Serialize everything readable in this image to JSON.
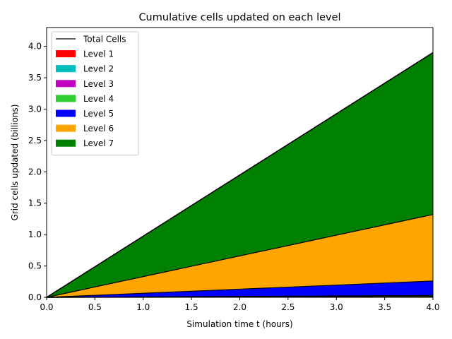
{
  "chart_data": {
    "type": "area",
    "title": "Cumulative cells updated on each level",
    "xlabel": "Simulation time t (hours)",
    "ylabel": "Grid cells updated (billions)",
    "xlim": [
      0,
      4
    ],
    "ylim": [
      0,
      4.3
    ],
    "x_ticks": [
      "0.0",
      "0.5",
      "1.0",
      "1.5",
      "2.0",
      "2.5",
      "3.0",
      "3.5",
      "4.0"
    ],
    "y_ticks": [
      "0.0",
      "0.5",
      "1.0",
      "1.5",
      "2.0",
      "2.5",
      "3.0",
      "3.5",
      "4.0"
    ],
    "x": [
      0,
      4
    ],
    "stacked": true,
    "legend_position": "top-left",
    "total_line": {
      "name": "Total Cells",
      "color": "#000000",
      "values": [
        0,
        3.9
      ]
    },
    "series": [
      {
        "name": "Level 1",
        "color": "#ff0000",
        "values": [
          0,
          0.002
        ]
      },
      {
        "name": "Level 2",
        "color": "#00bfbf",
        "values": [
          0,
          0.004
        ]
      },
      {
        "name": "Level 3",
        "color": "#bf00bf",
        "values": [
          0,
          0.008
        ]
      },
      {
        "name": "Level 4",
        "color": "#32cd32",
        "values": [
          0,
          0.016
        ]
      },
      {
        "name": "Level 5",
        "color": "#0000ff",
        "values": [
          0,
          0.23
        ]
      },
      {
        "name": "Level 6",
        "color": "#ffa500",
        "values": [
          0,
          1.06
        ]
      },
      {
        "name": "Level 7",
        "color": "#008000",
        "values": [
          0,
          2.58
        ]
      }
    ]
  }
}
